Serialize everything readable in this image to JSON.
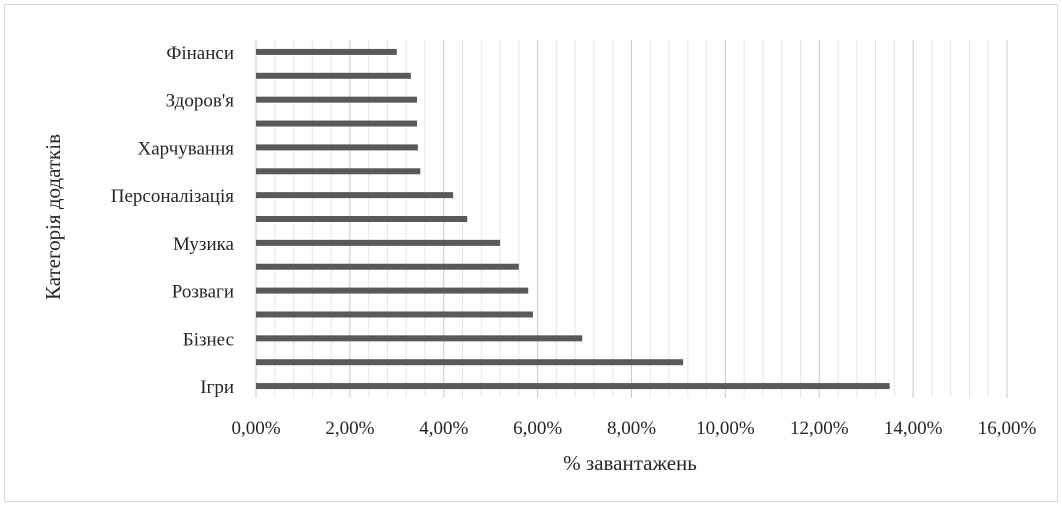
{
  "chart_data": {
    "type": "bar",
    "orientation": "horizontal",
    "title": "",
    "xlabel": "% завантажень",
    "ylabel": "Категорія додатків",
    "xlim": [
      0,
      0.16
    ],
    "x_ticks": [
      "0,00%",
      "2,00%",
      "4,00%",
      "6,00%",
      "8,00%",
      "10,00%",
      "12,00%",
      "14,00%",
      "16,00%"
    ],
    "grid": "vertical major and minor",
    "legend": "none",
    "categories": [
      "Ігри",
      "",
      "Бізнес",
      "",
      "Розваги",
      "",
      "Музика",
      "",
      "Персоналізація",
      "",
      "Харчування",
      "",
      "Здоров'я",
      "",
      "Фінанси"
    ],
    "values": [
      0.135,
      0.091,
      0.0695,
      0.059,
      0.058,
      0.056,
      0.052,
      0.045,
      0.042,
      0.035,
      0.0345,
      0.0343,
      0.0343,
      0.033,
      0.03
    ],
    "bar_color": "#595959"
  }
}
